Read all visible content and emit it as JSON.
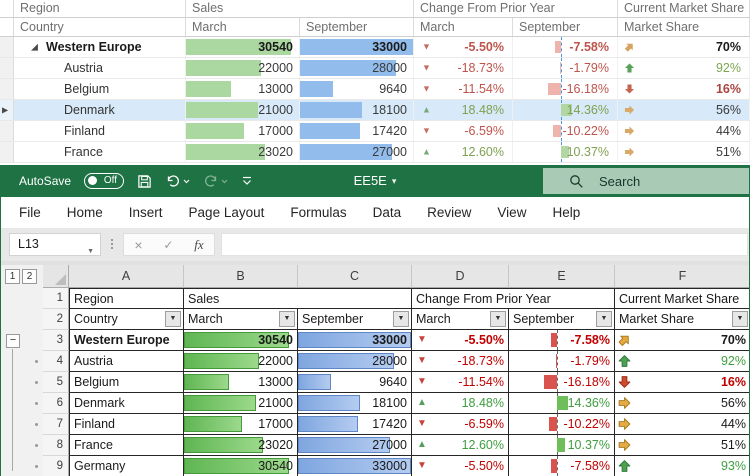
{
  "top_grid": {
    "group_headers": [
      "Region",
      "Sales",
      "Change From Prior Year",
      "Current Market Share"
    ],
    "sub_headers": [
      "Country",
      "March",
      "September",
      "March",
      "September",
      "Market Share"
    ]
  },
  "excel": {
    "titlebar": {
      "autosave_label": "AutoSave",
      "autosave_state": "Off",
      "title": "EE5E",
      "search_placeholder": "Search"
    },
    "menu_items": [
      "File",
      "Home",
      "Insert",
      "Page Layout",
      "Formulas",
      "Data",
      "Review",
      "View",
      "Help"
    ],
    "formula_bar": {
      "name_box": "L13",
      "formula": ""
    },
    "outline_buttons": [
      "1",
      "2"
    ],
    "column_letters": [
      "A",
      "B",
      "C",
      "D",
      "E",
      "F"
    ],
    "row_numbers": [
      "1",
      "2",
      "3",
      "4",
      "5",
      "6",
      "7",
      "8",
      "9"
    ],
    "header_row1": {
      "a": "Region",
      "b": "Sales",
      "d": "Change From Prior Year",
      "f": "Current Market Share"
    },
    "header_row2": [
      "Country",
      "March",
      "September",
      "March",
      "September",
      "Market Share"
    ]
  },
  "rows": [
    {
      "country": "Western Europe",
      "march": 30540,
      "september": 33000,
      "change_march": "-5.50%",
      "change_september": "-7.58%",
      "market_share": "70%",
      "share_icon": "diag-up",
      "bold": true
    },
    {
      "country": "Austria",
      "march": 22000,
      "september": 28000,
      "change_march": "-18.73%",
      "change_september": "-1.79%",
      "market_share": "92%",
      "share_icon": "up",
      "share_color": "green"
    },
    {
      "country": "Belgium",
      "march": 13000,
      "september": 9640,
      "change_march": "-11.54%",
      "change_september": "-16.18%",
      "market_share": "16%",
      "share_icon": "down",
      "share_color": "red",
      "share_bold": true
    },
    {
      "country": "Denmark",
      "march": 21000,
      "september": 18100,
      "change_march": "18.48%",
      "change_september": "14.36%",
      "market_share": "56%",
      "share_icon": "right",
      "selected": true
    },
    {
      "country": "Finland",
      "march": 17000,
      "september": 17420,
      "change_march": "-6.59%",
      "change_september": "-10.22%",
      "market_share": "44%",
      "share_icon": "right"
    },
    {
      "country": "France",
      "march": 23020,
      "september": 27000,
      "change_march": "12.60%",
      "change_september": "10.37%",
      "market_share": "51%",
      "share_icon": "right"
    },
    {
      "country": "Germany",
      "march": 30540,
      "september": 33000,
      "change_march": "-5.50%",
      "change_september": "-7.58%",
      "market_share": "93%",
      "share_icon": "up",
      "share_color": "green",
      "excel_only": true
    }
  ],
  "colors": {
    "title_bar_green": "#1F7244",
    "search_box_bg": "#A9CBB6",
    "excel_bar_green": "#5FB652",
    "excel_bar_blue": "#7FA6E0",
    "topgrid_bar_green": "#ABD7A0",
    "topgrid_bar_blue": "#92BCEC",
    "negative_red": "#C00000",
    "positive_green": "#3F9E3F",
    "selected_row_blue": "#D8EAF9"
  }
}
